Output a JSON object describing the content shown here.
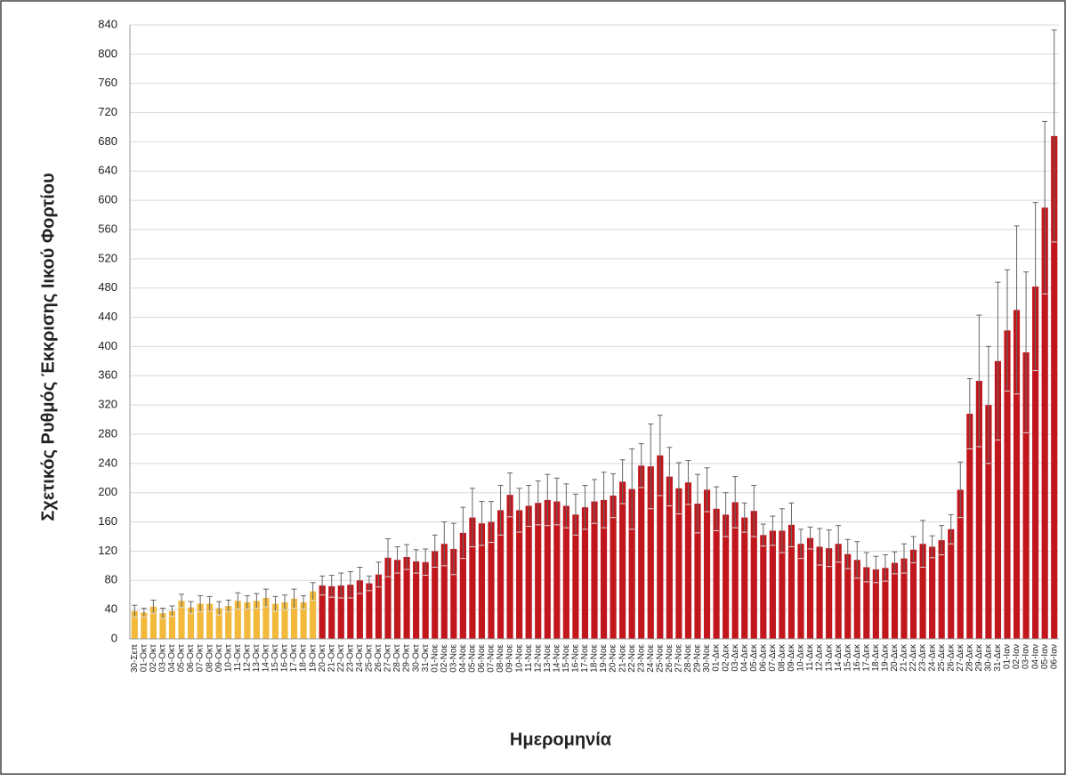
{
  "chart_data": {
    "type": "bar",
    "y_label": "Σχετικός Ρυθμός Έκκρισης Ιικού Φορτίου",
    "x_label": "Ημερομηνία",
    "categories": [
      "30-Σεπ",
      "01-Οκτ",
      "02-Οκτ",
      "03-Οκτ",
      "04-Οκτ",
      "05-Οκτ",
      "06-Οκτ",
      "07-Οκτ",
      "08-Οκτ",
      "09-Οκτ",
      "10-Οκτ",
      "11-Οκτ",
      "12-Οκτ",
      "13-Οκτ",
      "14-Οκτ",
      "15-Οκτ",
      "16-Οκτ",
      "17-Οκτ",
      "18-Οκτ",
      "19-Οκτ",
      "20-Οκτ",
      "21-Οκτ",
      "22-Οκτ",
      "23-Οκτ",
      "24-Οκτ",
      "25-Οκτ",
      "26-Οκτ",
      "27-Οκτ",
      "28-Οκτ",
      "29-Οκτ",
      "30-Οκτ",
      "31-Οκτ",
      "01-Νοε",
      "02-Νοε",
      "03-Νοε",
      "04-Νοε",
      "05-Νοε",
      "06-Νοε",
      "07-Νοε",
      "08-Νοε",
      "09-Νοε",
      "10-Νοε",
      "11-Νοε",
      "12-Νοε",
      "13-Νοε",
      "14-Νοε",
      "15-Νοε",
      "16-Νοε",
      "17-Νοε",
      "18-Νοε",
      "19-Νοε",
      "20-Νοε",
      "21-Νοε",
      "22-Νοε",
      "23-Νοε",
      "24-Νοε",
      "25-Νοε",
      "26-Νοε",
      "27-Νοε",
      "28-Νοε",
      "29-Νοε",
      "30-Νοε",
      "01-Δεκ",
      "02-Δεκ",
      "03-Δεκ",
      "04-Δεκ",
      "05-Δεκ",
      "06-Δεκ",
      "07-Δεκ",
      "08-Δεκ",
      "09-Δεκ",
      "10-Δεκ",
      "11-Δεκ",
      "12-Δεκ",
      "13-Δεκ",
      "14-Δεκ",
      "15-Δεκ",
      "16-Δεκ",
      "17-Δεκ",
      "18-Δεκ",
      "19-Δεκ",
      "20-Δεκ",
      "21-Δεκ",
      "22-Δεκ",
      "23-Δεκ",
      "24-Δεκ",
      "25-Δεκ",
      "26-Δεκ",
      "27-Δεκ",
      "28-Δεκ",
      "29-Δεκ",
      "30-Δεκ",
      "31-Δεκ",
      "01-Ιαν",
      "02-Ιαν",
      "03-Ιαν",
      "04-Ιαν",
      "05-Ιαν",
      "06-Ιαν"
    ],
    "values": [
      38,
      36,
      44,
      35,
      38,
      52,
      43,
      48,
      48,
      42,
      45,
      52,
      50,
      52,
      56,
      48,
      50,
      55,
      50,
      65,
      73,
      72,
      73,
      74,
      80,
      76,
      88,
      111,
      108,
      112,
      106,
      105,
      120,
      130,
      123,
      145,
      166,
      158,
      160,
      176,
      197,
      176,
      182,
      186,
      190,
      188,
      182,
      170,
      180,
      188,
      190,
      196,
      215,
      205,
      237,
      236,
      251,
      222,
      206,
      214,
      185,
      204,
      178,
      170,
      187,
      166,
      175,
      142,
      148,
      148,
      156,
      130,
      138,
      126,
      124,
      130,
      116,
      108,
      98,
      95,
      97,
      104,
      110,
      122,
      130,
      126,
      135,
      150,
      204,
      308,
      353,
      320,
      380,
      422,
      450,
      392,
      482,
      590,
      688
    ],
    "errors": [
      8,
      6,
      9,
      7,
      7,
      9,
      8,
      11,
      10,
      9,
      8,
      11,
      9,
      10,
      12,
      10,
      10,
      13,
      9,
      12,
      13,
      15,
      17,
      18,
      18,
      10,
      17,
      26,
      18,
      17,
      16,
      18,
      22,
      30,
      35,
      35,
      40,
      30,
      28,
      34,
      30,
      30,
      28,
      30,
      35,
      32,
      30,
      28,
      30,
      30,
      38,
      30,
      30,
      55,
      30,
      58,
      55,
      40,
      35,
      30,
      40,
      30,
      30,
      30,
      35,
      20,
      35,
      15,
      20,
      30,
      30,
      20,
      15,
      25,
      25,
      25,
      20,
      25,
      20,
      18,
      18,
      15,
      20,
      18,
      32,
      15,
      20,
      20,
      38,
      48,
      90,
      80,
      108,
      83,
      115,
      110,
      115,
      118,
      145
    ],
    "colors": [
      "#f2b93b",
      "#f2b93b",
      "#f2b93b",
      "#f2b93b",
      "#f2b93b",
      "#f2b93b",
      "#f2b93b",
      "#f2b93b",
      "#f2b93b",
      "#f2b93b",
      "#f2b93b",
      "#f2b93b",
      "#f2b93b",
      "#f2b93b",
      "#f2b93b",
      "#f2b93b",
      "#f2b93b",
      "#f2b93b",
      "#f2b93b",
      "#f2b93b",
      "#c0161c",
      "#c0161c",
      "#c0161c",
      "#c0161c",
      "#c0161c",
      "#c0161c",
      "#c0161c",
      "#c0161c",
      "#c0161c",
      "#c0161c",
      "#c0161c",
      "#c0161c",
      "#c0161c",
      "#c0161c",
      "#c0161c",
      "#c0161c",
      "#c0161c",
      "#c0161c",
      "#c0161c",
      "#c0161c",
      "#c0161c",
      "#c0161c",
      "#c0161c",
      "#c0161c",
      "#c0161c",
      "#c0161c",
      "#c0161c",
      "#c0161c",
      "#c0161c",
      "#c0161c",
      "#c0161c",
      "#c0161c",
      "#c0161c",
      "#c0161c",
      "#c0161c",
      "#c0161c",
      "#c0161c",
      "#c0161c",
      "#c0161c",
      "#c0161c",
      "#c0161c",
      "#c0161c",
      "#c0161c",
      "#c0161c",
      "#c0161c",
      "#c0161c",
      "#c0161c",
      "#c0161c",
      "#c0161c",
      "#c0161c",
      "#c0161c",
      "#c0161c",
      "#c0161c",
      "#c0161c",
      "#c0161c",
      "#c0161c",
      "#c0161c",
      "#c0161c",
      "#c0161c",
      "#c0161c",
      "#c0161c",
      "#c0161c",
      "#c0161c",
      "#c0161c",
      "#c0161c",
      "#c0161c",
      "#c0161c",
      "#c0161c",
      "#c0161c",
      "#c0161c",
      "#c0161c",
      "#c0161c",
      "#c0161c",
      "#c0161c",
      "#c0161c",
      "#c0161c",
      "#c0161c",
      "#c0161c",
      "#c0161c"
    ],
    "ylim": [
      0,
      840
    ],
    "yticks": [
      0,
      40,
      80,
      120,
      160,
      200,
      240,
      280,
      320,
      360,
      400,
      440,
      480,
      520,
      560,
      600,
      640,
      680,
      720,
      760,
      800,
      840
    ],
    "grid": true
  }
}
